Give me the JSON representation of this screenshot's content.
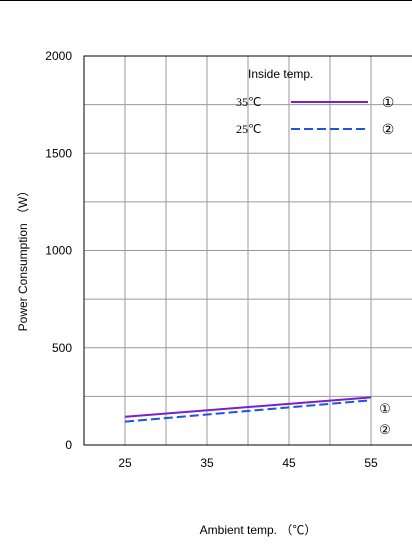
{
  "chart_data": {
    "type": "line",
    "xlabel": "Ambient temp. （℃）",
    "ylabel": "Power Consumption （W）",
    "x_ticks": [
      25,
      35,
      45,
      55
    ],
    "y_ticks": [
      0,
      500,
      1000,
      1500,
      2000
    ],
    "xlim": [
      20,
      60
    ],
    "ylim": [
      0,
      2000
    ],
    "grid": true,
    "legend": {
      "title": "Inside temp.",
      "placement": "top-right"
    },
    "series": [
      {
        "name": "35℃",
        "marker": "①",
        "color": "#7a1fd0",
        "style": "solid",
        "x": [
          25,
          55
        ],
        "y": [
          145,
          245
        ]
      },
      {
        "name": "25℃",
        "marker": "②",
        "color": "#1a55e8",
        "style": "dashed",
        "x": [
          25,
          55
        ],
        "y": [
          120,
          230
        ]
      }
    ]
  }
}
